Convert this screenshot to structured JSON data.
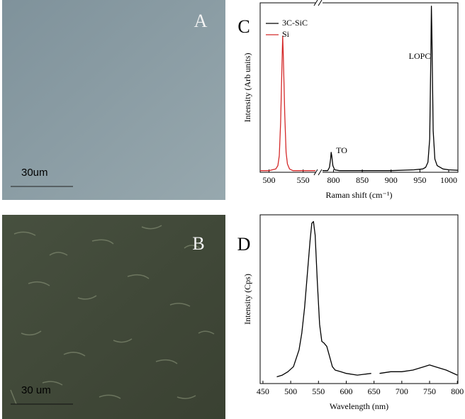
{
  "panels": [
    {
      "letter": "A",
      "scale_bar": "30um"
    },
    {
      "letter": "B",
      "scale_bar": "30 um"
    }
  ],
  "chart_data": [
    {
      "type": "line",
      "letter": "C",
      "x_label": "Raman shift (cm⁻¹)",
      "y_label": "Intensity (Arb units)",
      "x_segments": [
        {
          "xlim": [
            487,
            568
          ],
          "xticks": [
            500,
            550
          ]
        },
        {
          "xlim": [
            781,
            1016
          ],
          "xticks": [
            800,
            850,
            900,
            950,
            1000
          ]
        }
      ],
      "ylim": [
        0,
        102
      ],
      "legend": "upper left",
      "annotations": [
        "TO",
        "LOPC"
      ],
      "series": [
        {
          "name": "3C-SiC",
          "color": "#000000",
          "x": [
            781,
            785,
            790,
            793,
            795,
            796,
            797,
            799,
            802,
            810,
            850,
            900,
            940,
            955,
            960,
            964,
            967,
            969,
            970,
            971,
            973,
            976,
            980,
            990,
            1000,
            1016
          ],
          "values": [
            1,
            1,
            1,
            3,
            8,
            12,
            10,
            4,
            1.5,
            1,
            1,
            1,
            1.5,
            2,
            3,
            6,
            20,
            70,
            100,
            80,
            25,
            8,
            4,
            2,
            1.5,
            1.2
          ]
        },
        {
          "name": "Si",
          "color": "#d42a2a",
          "x": [
            487,
            495,
            500,
            505,
            510,
            513,
            515,
            517,
            519,
            520,
            521,
            523,
            525,
            527,
            530,
            535,
            540,
            550,
            560,
            568
          ],
          "values": [
            1,
            1,
            1,
            1.5,
            2,
            4,
            10,
            30,
            65,
            82,
            70,
            35,
            12,
            5,
            2,
            1,
            1,
            1,
            1,
            1
          ]
        }
      ]
    },
    {
      "type": "line",
      "letter": "D",
      "x_label": "Wavelength (nm)",
      "y_label": "Intensity (Cps)",
      "xlim": [
        445,
        801
      ],
      "xticks": [
        450,
        500,
        550,
        600,
        650,
        700,
        750,
        800
      ],
      "ylim": [
        0,
        100
      ],
      "legend": false,
      "series": [
        {
          "color": "#000000",
          "x": [
            475,
            485,
            495,
            505,
            515,
            520,
            525,
            530,
            535,
            538,
            541,
            544,
            548,
            552,
            556,
            560,
            565,
            570,
            575,
            580,
            590,
            600,
            620,
            645,
            652,
            660,
            680,
            700,
            720,
            740,
            750,
            760,
            780,
            800
          ],
          "values": [
            4,
            5,
            7,
            10,
            20,
            30,
            45,
            65,
            85,
            95,
            96,
            88,
            60,
            35,
            25,
            24,
            22,
            16,
            10,
            8,
            7,
            6,
            5,
            6,
            null,
            6,
            7,
            7,
            8,
            10,
            11,
            10,
            8,
            5
          ]
        }
      ]
    }
  ]
}
